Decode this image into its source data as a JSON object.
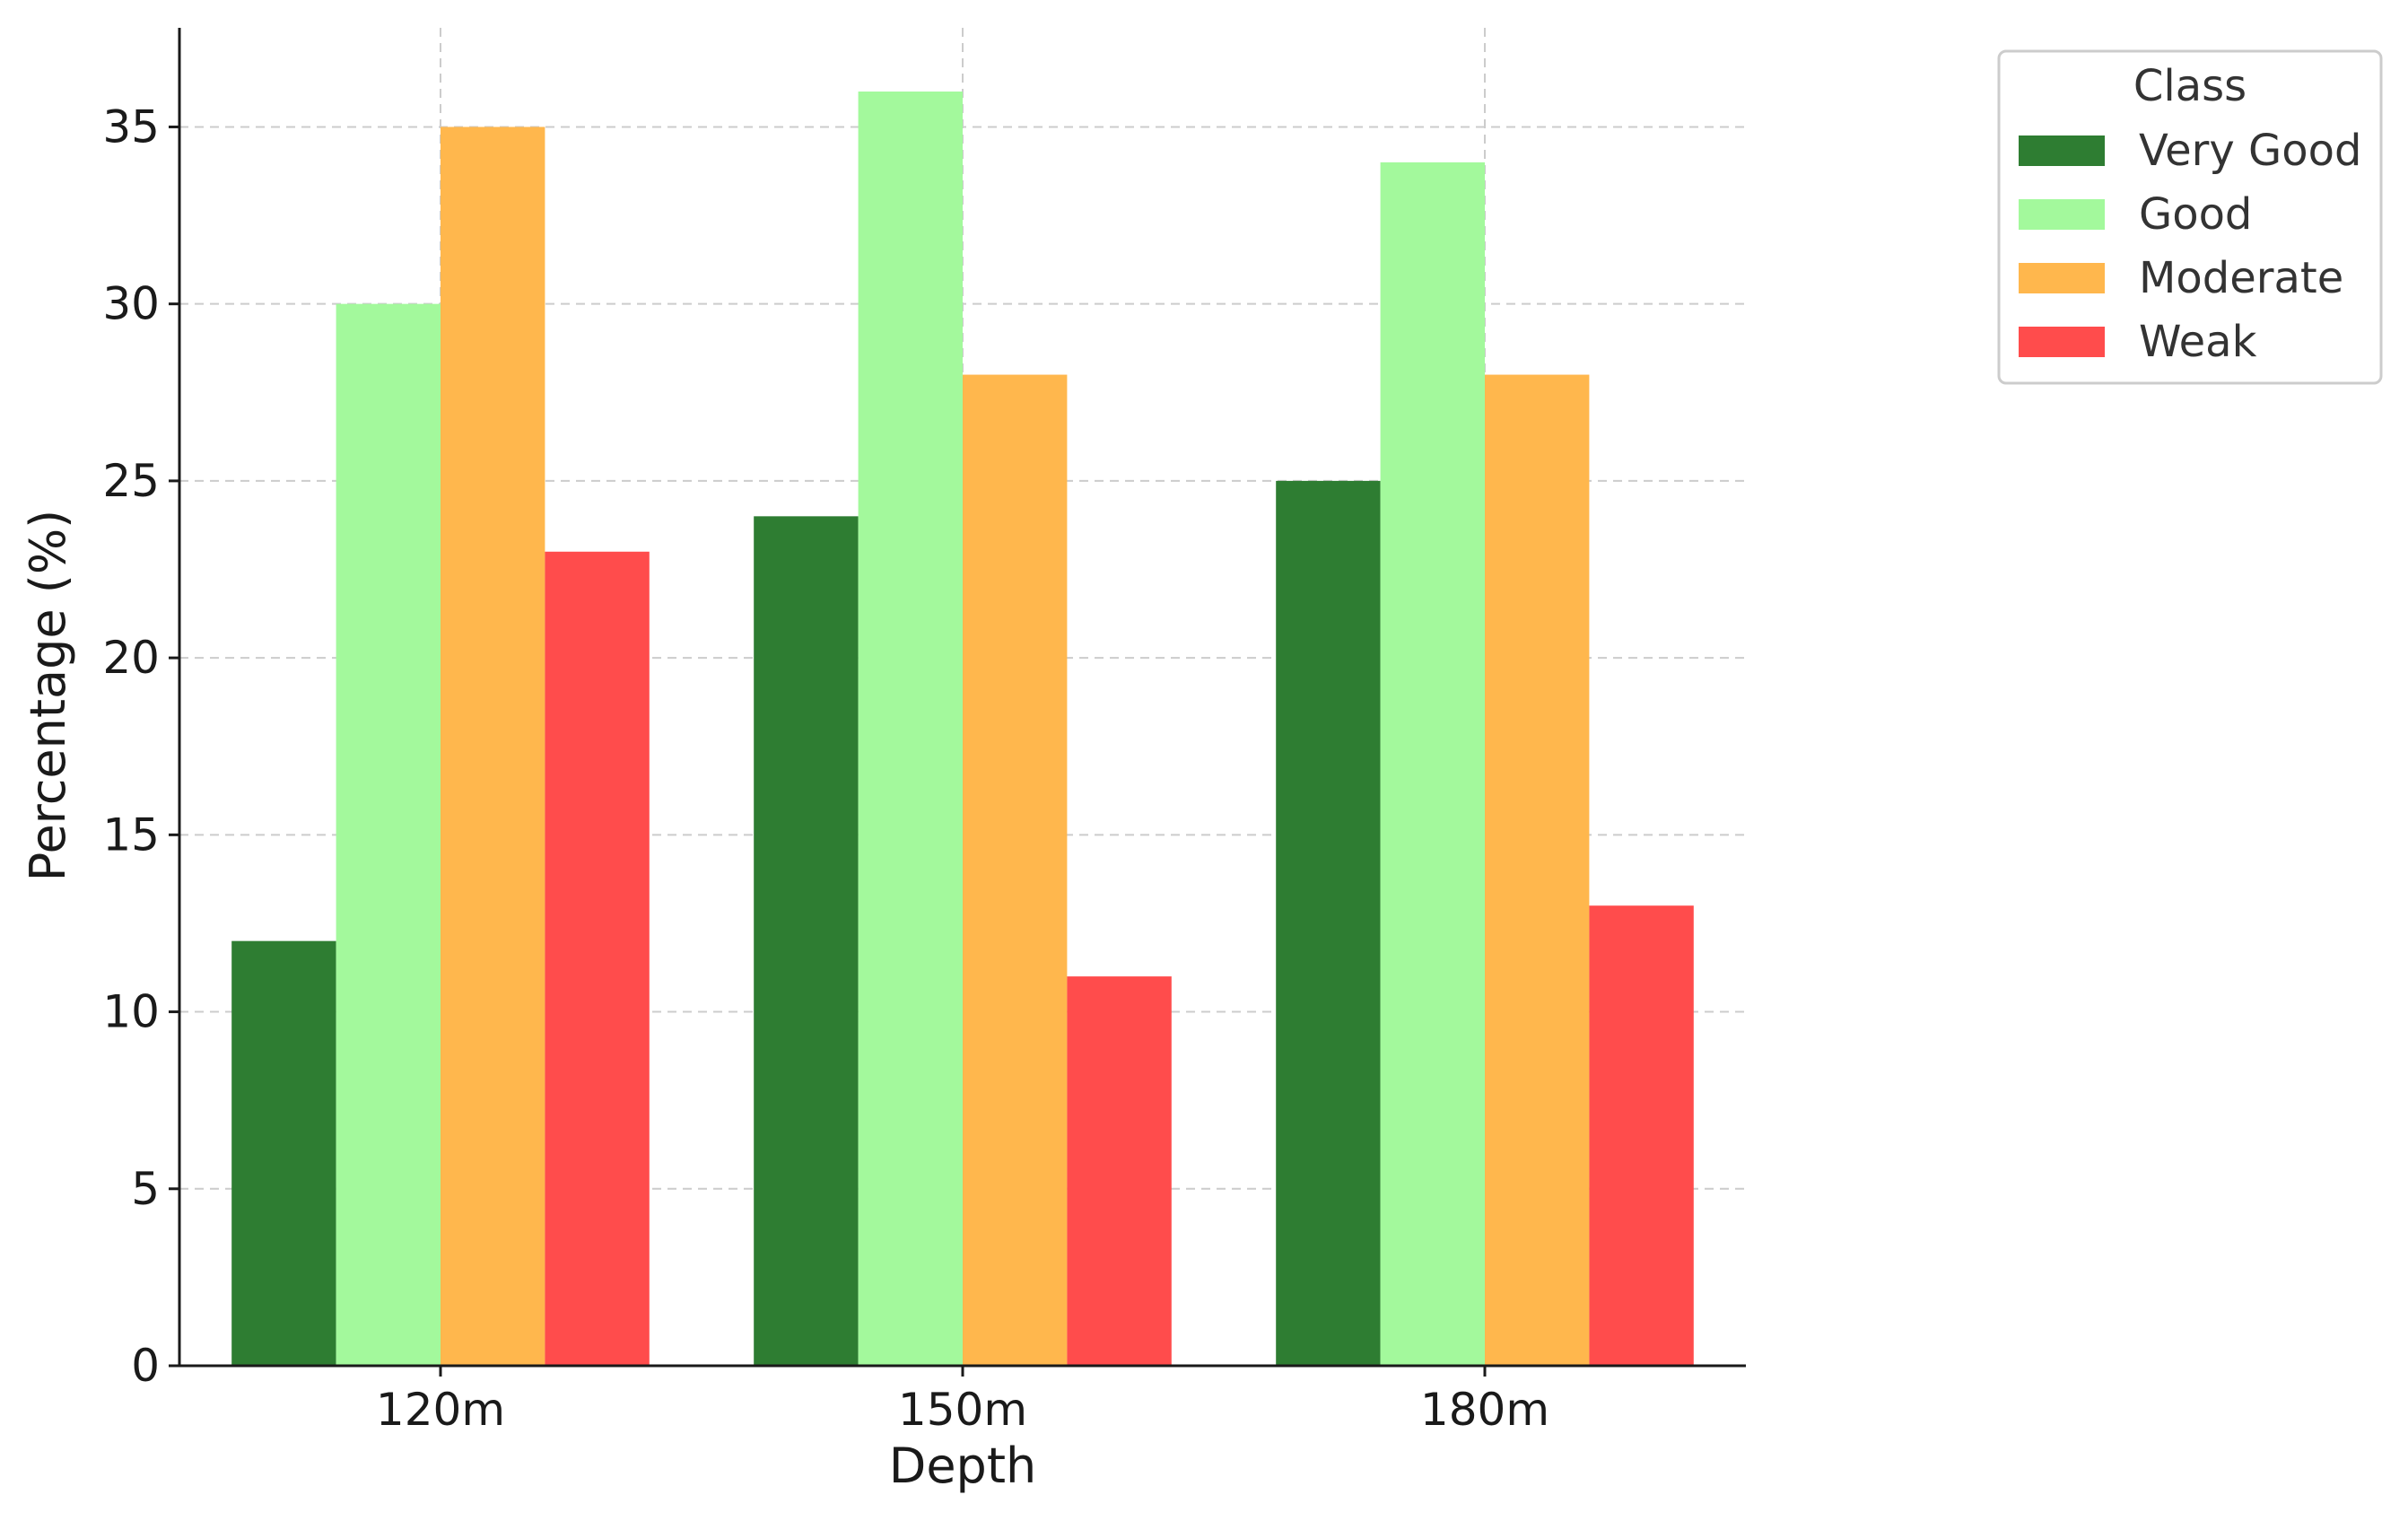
{
  "chart_data": {
    "type": "bar",
    "title": "",
    "xlabel": "Depth",
    "ylabel": "Percentage (%)",
    "categories": [
      "120m",
      "150m",
      "180m"
    ],
    "series": [
      {
        "name": "Very Good",
        "values": [
          12,
          24,
          25
        ],
        "color": "#2e7d32"
      },
      {
        "name": "Good",
        "values": [
          30,
          36,
          34
        ],
        "color": "#a3f99c"
      },
      {
        "name": "Moderate",
        "values": [
          35,
          28,
          28
        ],
        "color": "#ffb74d"
      },
      {
        "name": "Weak",
        "values": [
          23,
          11,
          13
        ],
        "color": "#ff4c4c"
      }
    ],
    "ylim": [
      0,
      37.8
    ],
    "yticks": [
      0,
      5,
      10,
      15,
      20,
      25,
      30,
      35
    ],
    "grid": true,
    "legend": {
      "title": "Class",
      "placement": "outside-top-right"
    }
  }
}
